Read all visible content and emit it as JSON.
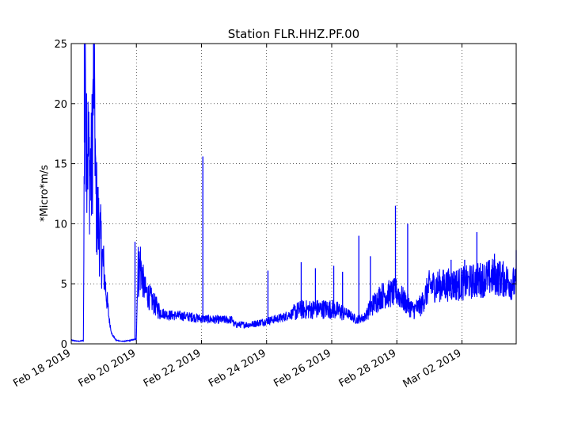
{
  "chart_data": {
    "type": "line",
    "title": "Station FLR.HHZ.PF.00",
    "xlabel": "",
    "ylabel": "*Micro*m/s",
    "xlim": [
      "2019-02-18",
      "2019-03-03T16:00"
    ],
    "ylim": [
      0,
      25
    ],
    "grid": true,
    "y_ticks": [
      0,
      5,
      10,
      15,
      20,
      25
    ],
    "x_ticks": [
      {
        "date": "2019-02-18",
        "label": "Feb 18 2019"
      },
      {
        "date": "2019-02-20",
        "label": "Feb 20 2019"
      },
      {
        "date": "2019-02-22",
        "label": "Feb 22 2019"
      },
      {
        "date": "2019-02-24",
        "label": "Feb 24 2019"
      },
      {
        "date": "2019-02-26",
        "label": "Feb 26 2019"
      },
      {
        "date": "2019-02-28",
        "label": "Feb 28 2019"
      },
      {
        "date": "2019-03-02",
        "label": "Mar 02 2019"
      }
    ],
    "series": [
      {
        "color": "#0000ff",
        "points": [
          [
            "2019-02-18T00:00",
            0.3
          ],
          [
            "2019-02-18T06:00",
            0.2
          ],
          [
            "2019-02-18T09:00",
            0.3
          ],
          [
            "2019-02-18T10:00",
            25
          ],
          [
            "2019-02-18T11:00",
            19
          ],
          [
            "2019-02-18T13:00",
            15
          ],
          [
            "2019-02-18T15:00",
            14
          ],
          [
            "2019-02-18T17:00",
            25
          ],
          [
            "2019-02-18T18:00",
            12
          ],
          [
            "2019-02-18T20:00",
            10
          ],
          [
            "2019-02-18T23:00",
            7
          ],
          [
            "2019-02-19T02:00",
            4
          ],
          [
            "2019-02-19T04:00",
            2
          ],
          [
            "2019-02-19T06:00",
            0.8
          ],
          [
            "2019-02-19T09:00",
            0.3
          ],
          [
            "2019-02-19T14:00",
            0.2
          ],
          [
            "2019-02-19T20:00",
            0.3
          ],
          [
            "2019-02-20T00:00",
            0.4
          ],
          [
            "2019-02-20T01:00",
            6
          ],
          [
            "2019-02-20T03:00",
            6.5
          ],
          [
            "2019-02-20T06:00",
            4.5
          ],
          [
            "2019-02-20T12:00",
            3.5
          ],
          [
            "2019-02-20T18:00",
            2.6
          ],
          [
            "2019-02-21T00:00",
            2.4
          ],
          [
            "2019-02-21T12:00",
            2.3
          ],
          [
            "2019-02-22T00:00",
            2.1
          ],
          [
            "2019-02-22T12:00",
            2.0
          ],
          [
            "2019-02-22T23:00",
            2.0
          ],
          [
            "2019-02-23T00:00",
            1.6
          ],
          [
            "2019-02-23T12:00",
            1.6
          ],
          [
            "2019-02-24T00:00",
            1.9
          ],
          [
            "2019-02-24T12:00",
            2.2
          ],
          [
            "2019-02-25T00:00",
            2.8
          ],
          [
            "2019-02-25T12:00",
            2.9
          ],
          [
            "2019-02-26T00:00",
            2.9
          ],
          [
            "2019-02-26T12:00",
            2.5
          ],
          [
            "2019-02-26T18:00",
            2.0
          ],
          [
            "2019-02-27T00:00",
            2.2
          ],
          [
            "2019-02-27T06:00",
            3.2
          ],
          [
            "2019-02-27T12:00",
            4.0
          ],
          [
            "2019-02-28T00:00",
            4.3
          ],
          [
            "2019-02-28T06:00",
            3.5
          ],
          [
            "2019-02-28T12:00",
            2.8
          ],
          [
            "2019-02-28T18:00",
            3.2
          ],
          [
            "2019-03-01T00:00",
            4.8
          ],
          [
            "2019-03-01T12:00",
            4.9
          ],
          [
            "2019-03-02T00:00",
            5.0
          ],
          [
            "2019-03-02T12:00",
            5.3
          ],
          [
            "2019-03-03T00:00",
            5.6
          ],
          [
            "2019-03-03T06:00",
            5.4
          ],
          [
            "2019-03-03T12:00",
            5.1
          ],
          [
            "2019-03-03T16:00",
            4.9
          ]
        ],
        "spikes": [
          [
            "2019-02-18T09:40",
            25
          ],
          [
            "2019-02-18T16:30",
            25
          ],
          [
            "2019-02-19T23:00",
            8.5
          ],
          [
            "2019-02-21T17:00",
            2.6
          ],
          [
            "2019-02-22T01:00",
            15.6
          ],
          [
            "2019-02-24T01:00",
            6.1
          ],
          [
            "2019-02-25T01:30",
            6.8
          ],
          [
            "2019-02-25T12:00",
            6.3
          ],
          [
            "2019-02-26T01:30",
            6.5
          ],
          [
            "2019-02-26T08:00",
            6.0
          ],
          [
            "2019-02-26T20:00",
            9.0
          ],
          [
            "2019-02-27T04:30",
            7.3
          ],
          [
            "2019-02-27T23:00",
            11.5
          ],
          [
            "2019-02-28T08:00",
            10.0
          ],
          [
            "2019-03-01T16:00",
            7.0
          ],
          [
            "2019-03-02T02:00",
            7.0
          ],
          [
            "2019-03-02T11:00",
            9.3
          ],
          [
            "2019-03-03T00:00",
            7.5
          ],
          [
            "2019-03-03T16:00",
            7.8
          ]
        ]
      }
    ]
  }
}
